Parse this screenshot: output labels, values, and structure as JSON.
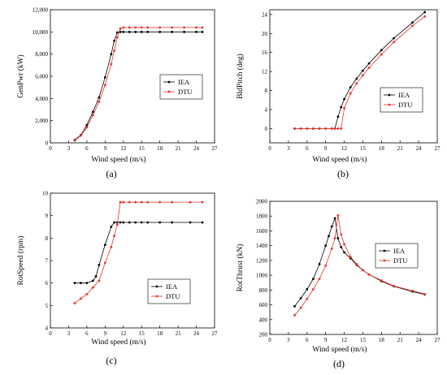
{
  "chart_data": [
    {
      "type": "line",
      "panel": "a",
      "caption": "(a)",
      "xlabel": "Wind speed (m/s)",
      "ylabel": "GenPwr (kW)",
      "xlim": [
        0,
        27
      ],
      "ylim": [
        0,
        12000
      ],
      "xticks": [
        0,
        3,
        6,
        9,
        12,
        15,
        18,
        21,
        24,
        27
      ],
      "yticks": [
        0,
        2000,
        4000,
        6000,
        8000,
        10000,
        12000
      ],
      "ytick_labels": [
        "0",
        "2,000",
        "4,000",
        "6,000",
        "8,000",
        "10,000",
        "12,000"
      ],
      "legend_position": "right",
      "series": [
        {
          "name": "IEA",
          "color": "#000000",
          "x": [
            4,
            5,
            6,
            7,
            8,
            9,
            10,
            10.5,
            11,
            11.5,
            12,
            13,
            14,
            15,
            16,
            18,
            20,
            22,
            24,
            25
          ],
          "y": [
            250,
            700,
            1600,
            2800,
            4100,
            5900,
            8000,
            9200,
            9950,
            10000,
            10000,
            10000,
            10000,
            10000,
            10000,
            10000,
            10000,
            10000,
            10000,
            10000
          ]
        },
        {
          "name": "DTU",
          "color": "#e8322a",
          "x": [
            4,
            5,
            6,
            7,
            8,
            9,
            10,
            10.5,
            11,
            11.5,
            12,
            13,
            14,
            15,
            16,
            18,
            20,
            22,
            24,
            25
          ],
          "y": [
            200,
            650,
            1400,
            2500,
            3700,
            5200,
            7100,
            8300,
            9500,
            10300,
            10400,
            10400,
            10400,
            10400,
            10400,
            10400,
            10400,
            10400,
            10400,
            10400
          ]
        }
      ]
    },
    {
      "type": "line",
      "panel": "b",
      "caption": "(b)",
      "xlabel": "Wind speed (m/s)",
      "ylabel": "BldPitch (deg)",
      "xlim": [
        0,
        27
      ],
      "ylim": [
        -3,
        25
      ],
      "xticks": [
        0,
        3,
        6,
        9,
        12,
        15,
        18,
        21,
        24,
        27
      ],
      "yticks": [
        0,
        4,
        8,
        12,
        16,
        20,
        24
      ],
      "ytick_labels": [
        "0",
        "4",
        "8",
        "12",
        "16",
        "20",
        "24"
      ],
      "legend_position": "right",
      "series": [
        {
          "name": "IEA",
          "color": "#000000",
          "x": [
            4,
            5,
            6,
            7,
            8,
            9,
            10,
            10.5,
            11,
            11.5,
            12,
            13,
            14,
            15,
            16,
            18,
            20,
            23,
            25
          ],
          "y": [
            0,
            0,
            0,
            0,
            0,
            0,
            0,
            0,
            2.5,
            4.5,
            6.2,
            8.7,
            10.5,
            12.2,
            13.7,
            16.5,
            19.0,
            22.3,
            24.5
          ]
        },
        {
          "name": "DTU",
          "color": "#e8322a",
          "x": [
            4,
            5,
            6,
            7,
            8,
            9,
            10,
            10.5,
            11,
            11.5,
            12,
            13,
            14,
            15,
            16,
            18,
            20,
            23,
            25
          ],
          "y": [
            0,
            0,
            0,
            0,
            0,
            0,
            0,
            0,
            0,
            0,
            4.3,
            7.4,
            9.5,
            11.2,
            12.8,
            15.6,
            18.2,
            21.6,
            23.6
          ]
        }
      ]
    },
    {
      "type": "line",
      "panel": "c",
      "caption": "(c)",
      "xlabel": "Wind speed (m/s)",
      "ylabel": "RotSpeed (rpm)",
      "xlim": [
        0,
        27
      ],
      "ylim": [
        4,
        10
      ],
      "xticks": [
        0,
        3,
        6,
        9,
        12,
        15,
        18,
        21,
        24,
        27
      ],
      "yticks": [
        4,
        5,
        6,
        7,
        8,
        9,
        10
      ],
      "ytick_labels": [
        "4",
        "5",
        "6",
        "7",
        "8",
        "9",
        "10"
      ],
      "legend_position": "right",
      "series": [
        {
          "name": "IEA",
          "color": "#000000",
          "x": [
            4,
            5,
            6,
            7,
            7.5,
            8,
            9,
            10,
            10.5,
            11,
            11.5,
            12,
            13,
            14,
            15,
            16,
            18,
            20,
            23,
            25
          ],
          "y": [
            6.0,
            6.0,
            6.0,
            6.1,
            6.3,
            6.8,
            7.7,
            8.5,
            8.7,
            8.7,
            8.7,
            8.7,
            8.7,
            8.7,
            8.7,
            8.7,
            8.7,
            8.7,
            8.7,
            8.7
          ]
        },
        {
          "name": "DTU",
          "color": "#e8322a",
          "x": [
            4,
            5,
            6,
            7,
            8,
            9,
            10,
            10.5,
            11,
            11.5,
            12,
            13,
            14,
            15,
            16,
            18,
            20,
            23,
            25
          ],
          "y": [
            5.1,
            5.3,
            5.5,
            5.8,
            6.1,
            6.9,
            7.6,
            8.1,
            8.6,
            9.6,
            9.6,
            9.6,
            9.6,
            9.6,
            9.6,
            9.6,
            9.6,
            9.6,
            9.6
          ]
        }
      ]
    },
    {
      "type": "line",
      "panel": "d",
      "caption": "(d)",
      "xlabel": "Wind speed (m/s)",
      "ylabel": "RotThrust (kN)",
      "xlim": [
        0,
        27
      ],
      "ylim": [
        200,
        2000
      ],
      "xticks": [
        0,
        3,
        6,
        9,
        12,
        15,
        18,
        21,
        24,
        27
      ],
      "yticks": [
        200,
        400,
        600,
        800,
        1000,
        1200,
        1400,
        1600,
        1800,
        2000
      ],
      "ytick_labels": [
        "200",
        "400",
        "600",
        "800",
        "1000",
        "1200",
        "1400",
        "1600",
        "1800",
        "2000"
      ],
      "legend_position": "right",
      "series": [
        {
          "name": "IEA",
          "color": "#000000",
          "x": [
            4,
            5,
            6,
            7,
            8,
            9,
            9.5,
            10,
            10.5,
            11,
            11.5,
            12,
            13,
            14,
            15,
            16,
            18,
            20,
            23,
            25
          ],
          "y": [
            580,
            690,
            810,
            950,
            1150,
            1400,
            1530,
            1660,
            1770,
            1500,
            1380,
            1310,
            1230,
            1140,
            1070,
            1010,
            920,
            850,
            780,
            740
          ]
        },
        {
          "name": "DTU",
          "color": "#e8322a",
          "x": [
            4,
            5,
            6,
            7,
            8,
            9,
            10,
            10.5,
            11,
            11.5,
            12,
            13,
            14,
            15,
            16,
            18,
            20,
            23,
            25
          ],
          "y": [
            460,
            560,
            680,
            810,
            950,
            1130,
            1360,
            1500,
            1810,
            1550,
            1420,
            1250,
            1150,
            1070,
            1010,
            930,
            855,
            790,
            745
          ]
        }
      ]
    }
  ]
}
